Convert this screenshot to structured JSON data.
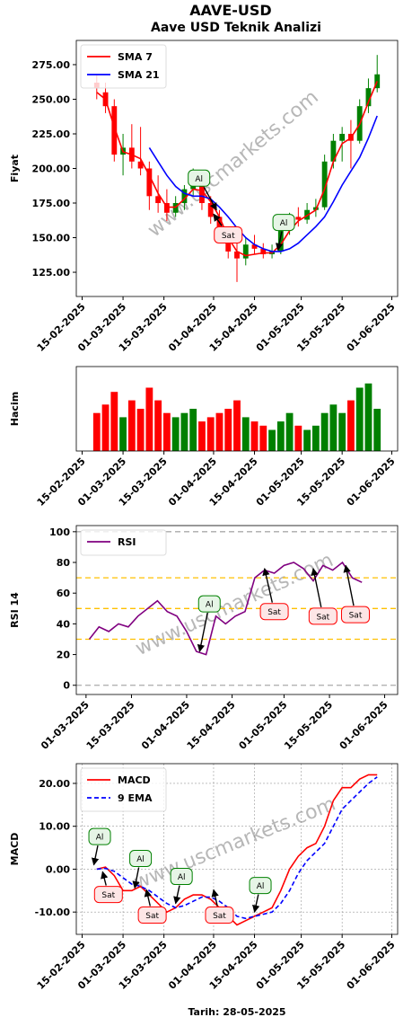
{
  "title": "AAVE-USD",
  "subtitle": "Aave USD Teknik Analizi",
  "watermark": "www.uscmarkets.com",
  "chart_data": [
    {
      "type": "candlestick",
      "ylabel": "Fiyat",
      "legend": "upper left",
      "up_color": "#008000",
      "down_color": "#ff0000",
      "x": [
        "2025-02-20",
        "2025-02-23",
        "2025-02-26",
        "2025-03-01",
        "2025-03-04",
        "2025-03-07",
        "2025-03-10",
        "2025-03-13",
        "2025-03-16",
        "2025-03-19",
        "2025-03-22",
        "2025-03-25",
        "2025-03-28",
        "2025-03-31",
        "2025-04-03",
        "2025-04-06",
        "2025-04-09",
        "2025-04-12",
        "2025-04-15",
        "2025-04-18",
        "2025-04-21",
        "2025-04-24",
        "2025-04-27",
        "2025-04-30",
        "2025-05-03",
        "2025-05-06",
        "2025-05-09",
        "2025-05-12",
        "2025-05-15",
        "2025-05-18",
        "2025-05-21",
        "2025-05-24",
        "2025-05-27"
      ],
      "open": [
        262,
        255,
        245,
        210,
        215,
        205,
        200,
        180,
        175,
        168,
        175,
        185,
        188,
        175,
        165,
        155,
        140,
        135,
        145,
        142,
        138,
        140,
        158,
        165,
        163,
        170,
        172,
        205,
        220,
        225,
        220,
        245,
        258
      ],
      "high": [
        268,
        262,
        250,
        225,
        232,
        230,
        205,
        195,
        185,
        180,
        188,
        200,
        192,
        180,
        170,
        158,
        148,
        150,
        152,
        146,
        145,
        160,
        168,
        172,
        175,
        178,
        210,
        225,
        230,
        235,
        250,
        265,
        282
      ],
      "low": [
        250,
        240,
        205,
        195,
        200,
        195,
        170,
        168,
        162,
        165,
        170,
        180,
        170,
        160,
        150,
        135,
        118,
        130,
        138,
        135,
        135,
        138,
        152,
        158,
        160,
        165,
        170,
        200,
        205,
        200,
        218,
        240,
        255
      ],
      "close": [
        258,
        245,
        210,
        215,
        205,
        200,
        180,
        175,
        168,
        175,
        185,
        188,
        175,
        165,
        155,
        140,
        135,
        145,
        142,
        138,
        140,
        158,
        165,
        163,
        170,
        172,
        205,
        220,
        225,
        220,
        245,
        258,
        268
      ],
      "series": [
        {
          "name": "SMA 7",
          "color": "#ff0000",
          "values": [
            255,
            250,
            230,
            212,
            210,
            207,
            195,
            182,
            172,
            172,
            178,
            185,
            184,
            176,
            165,
            150,
            140,
            137,
            138,
            139,
            139,
            145,
            155,
            162,
            166,
            170,
            185,
            205,
            218,
            222,
            232,
            248,
            263
          ]
        },
        {
          "name": "SMA 21",
          "color": "#0000ff",
          "values": [
            null,
            null,
            null,
            null,
            null,
            null,
            215,
            205,
            195,
            187,
            182,
            180,
            180,
            178,
            172,
            165,
            157,
            150,
            145,
            142,
            140,
            140,
            142,
            146,
            152,
            158,
            165,
            176,
            188,
            198,
            208,
            222,
            238
          ]
        }
      ],
      "annotations": [
        {
          "text": "Al",
          "color": "green",
          "xytext": [
            "2025-03-27",
            193
          ],
          "xy": [
            "2025-04-02",
            170
          ]
        },
        {
          "text": "Sat",
          "color": "red",
          "xytext": [
            "2025-04-06",
            152
          ],
          "xy": [
            "2025-04-01",
            167
          ]
        },
        {
          "text": "Al",
          "color": "green",
          "xytext": [
            "2025-04-25",
            161
          ],
          "xy": [
            "2025-04-23",
            141
          ]
        }
      ],
      "xlim": [
        "2025-02-13",
        "2025-06-03"
      ],
      "xticks": [
        {
          "value": "2025-02-15",
          "label": "15-02-2025"
        },
        {
          "value": "2025-03-01",
          "label": "01-03-2025"
        },
        {
          "value": "2025-03-15",
          "label": "15-03-2025"
        },
        {
          "value": "2025-04-01",
          "label": "01-04-2025"
        },
        {
          "value": "2025-04-15",
          "label": "15-04-2025"
        },
        {
          "value": "2025-05-01",
          "label": "01-05-2025"
        },
        {
          "value": "2025-05-15",
          "label": "15-05-2025"
        },
        {
          "value": "2025-06-01",
          "label": "01-06-2025"
        }
      ],
      "ylim": [
        107.5,
        292.5
      ],
      "yticks": [
        {
          "value": 125,
          "label": "125.00"
        },
        {
          "value": 150,
          "label": "150.00"
        },
        {
          "value": 175,
          "label": "175.00"
        },
        {
          "value": 200,
          "label": "200.00"
        },
        {
          "value": 225,
          "label": "225.00"
        },
        {
          "value": 250,
          "label": "250.00"
        },
        {
          "value": 275,
          "label": "275.00"
        }
      ]
    },
    {
      "type": "bar",
      "ylabel": "Hacim",
      "x": [
        "2025-02-20",
        "2025-02-23",
        "2025-02-26",
        "2025-03-01",
        "2025-03-04",
        "2025-03-07",
        "2025-03-10",
        "2025-03-13",
        "2025-03-16",
        "2025-03-19",
        "2025-03-22",
        "2025-03-25",
        "2025-03-28",
        "2025-03-31",
        "2025-04-03",
        "2025-04-06",
        "2025-04-09",
        "2025-04-12",
        "2025-04-15",
        "2025-04-18",
        "2025-04-21",
        "2025-04-24",
        "2025-04-27",
        "2025-04-30",
        "2025-05-03",
        "2025-05-06",
        "2025-05-09",
        "2025-05-12",
        "2025-05-15",
        "2025-05-18",
        "2025-05-21",
        "2025-05-24",
        "2025-05-27"
      ],
      "values": [
        45,
        55,
        70,
        40,
        60,
        50,
        75,
        60,
        45,
        40,
        45,
        50,
        35,
        40,
        45,
        50,
        60,
        40,
        35,
        30,
        25,
        35,
        45,
        30,
        25,
        30,
        45,
        55,
        45,
        60,
        75,
        80,
        50
      ],
      "ylim": [
        0,
        100
      ],
      "xlim": [
        "2025-02-13",
        "2025-06-03"
      ],
      "xticks": [
        {
          "value": "2025-02-15",
          "label": "15-02-2025"
        },
        {
          "value": "2025-03-01",
          "label": "01-03-2025"
        },
        {
          "value": "2025-03-15",
          "label": "15-03-2025"
        },
        {
          "value": "2025-04-01",
          "label": "01-04-2025"
        },
        {
          "value": "2025-04-15",
          "label": "15-04-2025"
        },
        {
          "value": "2025-05-01",
          "label": "01-05-2025"
        },
        {
          "value": "2025-05-15",
          "label": "15-05-2025"
        },
        {
          "value": "2025-06-01",
          "label": "01-06-2025"
        }
      ]
    },
    {
      "type": "line",
      "ylabel": "RSI 14",
      "legend": "upper left",
      "x": [
        "2025-03-02",
        "2025-03-05",
        "2025-03-08",
        "2025-03-11",
        "2025-03-14",
        "2025-03-17",
        "2025-03-20",
        "2025-03-23",
        "2025-03-26",
        "2025-03-29",
        "2025-04-01",
        "2025-04-04",
        "2025-04-07",
        "2025-04-10",
        "2025-04-13",
        "2025-04-16",
        "2025-04-19",
        "2025-04-22",
        "2025-04-25",
        "2025-04-28",
        "2025-05-01",
        "2025-05-04",
        "2025-05-07",
        "2025-05-10",
        "2025-05-13",
        "2025-05-16",
        "2025-05-19",
        "2025-05-22",
        "2025-05-25"
      ],
      "series": [
        {
          "name": "RSI",
          "color": "#800080",
          "values": [
            30,
            38,
            35,
            40,
            38,
            45,
            50,
            55,
            48,
            45,
            35,
            22,
            20,
            45,
            40,
            45,
            48,
            70,
            75,
            73,
            78,
            80,
            76,
            68,
            78,
            75,
            80,
            70,
            67
          ]
        }
      ],
      "hlines": [
        {
          "value": 0,
          "color": "#aaaaaa"
        },
        {
          "value": 100,
          "color": "#aaaaaa"
        },
        {
          "value": 30,
          "color": "#ffc000"
        },
        {
          "value": 50,
          "color": "#ffc000"
        },
        {
          "value": 70,
          "color": "#ffc000"
        }
      ],
      "annotations": [
        {
          "text": "Al",
          "color": "green",
          "xytext": [
            "2025-04-08",
            53
          ],
          "xy": [
            "2025-04-05",
            22
          ]
        },
        {
          "text": "Sat",
          "color": "red",
          "xytext": [
            "2025-04-28",
            48
          ],
          "xy": [
            "2025-04-25",
            76
          ]
        },
        {
          "text": "Sat",
          "color": "red",
          "xytext": [
            "2025-05-13",
            45
          ],
          "xy": [
            "2025-05-10",
            76
          ]
        },
        {
          "text": "Sat",
          "color": "red",
          "xytext": [
            "2025-05-23",
            46
          ],
          "xy": [
            "2025-05-20",
            78
          ]
        }
      ],
      "xlim": [
        "2025-02-26",
        "2025-06-05"
      ],
      "xticks": [
        {
          "value": "2025-03-01",
          "label": "01-03-2025"
        },
        {
          "value": "2025-03-15",
          "label": "15-03-2025"
        },
        {
          "value": "2025-04-01",
          "label": "01-04-2025"
        },
        {
          "value": "2025-04-15",
          "label": "15-04-2025"
        },
        {
          "value": "2025-05-01",
          "label": "01-05-2025"
        },
        {
          "value": "2025-05-15",
          "label": "15-05-2025"
        },
        {
          "value": "2025-06-01",
          "label": "01-06-2025"
        }
      ],
      "ylim": [
        -6,
        104
      ],
      "yticks": [
        0,
        20,
        40,
        60,
        80,
        100
      ]
    },
    {
      "type": "line",
      "ylabel": "MACD",
      "xlabel": "Tarih: 28-05-2025",
      "legend": "upper left",
      "grid": true,
      "x": [
        "2025-02-20",
        "2025-02-23",
        "2025-02-26",
        "2025-03-01",
        "2025-03-04",
        "2025-03-07",
        "2025-03-10",
        "2025-03-13",
        "2025-03-16",
        "2025-03-19",
        "2025-03-22",
        "2025-03-25",
        "2025-03-28",
        "2025-03-31",
        "2025-04-03",
        "2025-04-06",
        "2025-04-09",
        "2025-04-12",
        "2025-04-15",
        "2025-04-18",
        "2025-04-21",
        "2025-04-24",
        "2025-04-27",
        "2025-04-30",
        "2025-05-03",
        "2025-05-06",
        "2025-05-09",
        "2025-05-12",
        "2025-05-15",
        "2025-05-18",
        "2025-05-21",
        "2025-05-24",
        "2025-05-27"
      ],
      "series": [
        {
          "name": "MACD",
          "color": "#ff0000",
          "values": [
            0,
            0.5,
            -1.5,
            -5,
            -5,
            -4,
            -6,
            -8,
            -10,
            -9,
            -7,
            -6,
            -6,
            -7,
            -9,
            -11,
            -13,
            -12,
            -11,
            -10,
            -9,
            -5,
            0,
            3,
            5,
            6,
            10,
            16,
            19,
            19,
            21,
            22,
            22
          ]
        },
        {
          "name": "9 EMA",
          "color": "#0000ff",
          "dashed": true,
          "values": [
            0,
            0.2,
            -0.5,
            -2,
            -3.5,
            -4,
            -5,
            -6.5,
            -8,
            -9,
            -8.5,
            -7.5,
            -6.5,
            -6.5,
            -7.5,
            -9,
            -11,
            -11.5,
            -11,
            -10.5,
            -10,
            -8,
            -5,
            -1,
            2,
            4,
            6,
            10,
            14,
            16,
            18,
            20,
            21.5
          ]
        }
      ],
      "annotations": [
        {
          "text": "Al",
          "color": "green",
          "xytext": [
            "2025-02-21",
            7.6
          ],
          "xy": [
            "2025-02-19",
            1
          ]
        },
        {
          "text": "Sat",
          "color": "red",
          "xytext": [
            "2025-02-24",
            -5.9
          ],
          "xy": [
            "2025-02-22",
            -0.6
          ]
        },
        {
          "text": "Al",
          "color": "green",
          "xytext": [
            "2025-03-07",
            2.5
          ],
          "xy": [
            "2025-03-05",
            -4.4
          ]
        },
        {
          "text": "Sat",
          "color": "red",
          "xytext": [
            "2025-03-11",
            -10.7
          ],
          "xy": [
            "2025-03-09",
            -4.8
          ]
        },
        {
          "text": "Al",
          "color": "green",
          "xytext": [
            "2025-03-21",
            -1.7
          ],
          "xy": [
            "2025-03-19",
            -8
          ]
        },
        {
          "text": "Sat",
          "color": "red",
          "xytext": [
            "2025-04-03",
            -10.7
          ],
          "xy": [
            "2025-04-01",
            -4.8
          ]
        },
        {
          "text": "Al",
          "color": "green",
          "xytext": [
            "2025-04-17",
            -3.8
          ],
          "xy": [
            "2025-04-15",
            -10
          ]
        }
      ],
      "xlim": [
        "2025-02-13",
        "2025-06-03"
      ],
      "xticks": [
        {
          "value": "2025-02-15",
          "label": "15-02-2025"
        },
        {
          "value": "2025-03-01",
          "label": "01-03-2025"
        },
        {
          "value": "2025-03-15",
          "label": "15-03-2025"
        },
        {
          "value": "2025-04-01",
          "label": "01-04-2025"
        },
        {
          "value": "2025-04-15",
          "label": "15-04-2025"
        },
        {
          "value": "2025-05-01",
          "label": "01-05-2025"
        },
        {
          "value": "2025-05-15",
          "label": "15-05-2025"
        },
        {
          "value": "2025-06-01",
          "label": "01-06-2025"
        }
      ],
      "ylim": [
        -15.2,
        24.6
      ],
      "yticks": [
        {
          "value": -10,
          "label": "-10.00"
        },
        {
          "value": 0,
          "label": "0.00"
        },
        {
          "value": 10,
          "label": "10.00"
        },
        {
          "value": 20,
          "label": "20.00"
        }
      ]
    }
  ]
}
